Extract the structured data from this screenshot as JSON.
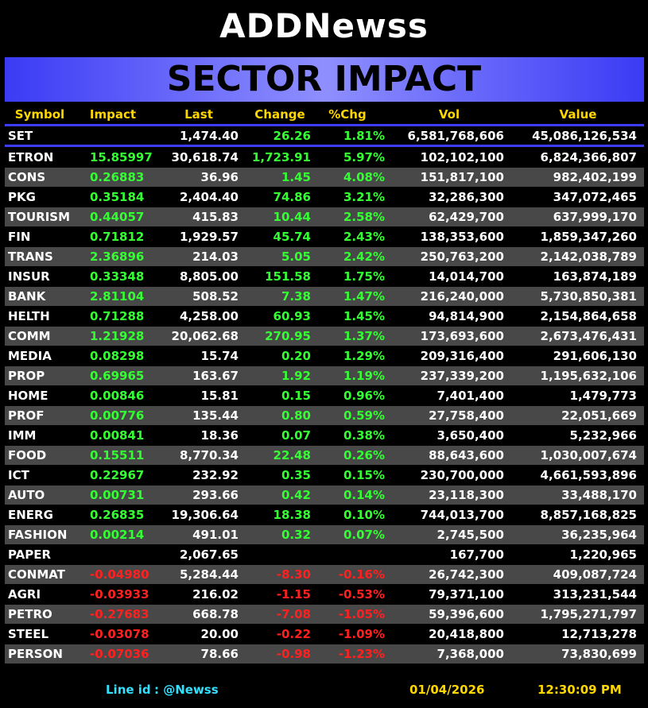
{
  "header": {
    "logo": "ADDNewss",
    "title": "SECTOR IMPACT"
  },
  "table": {
    "columns": [
      "Symbol",
      "Impact",
      "Last",
      "Change",
      "%Chg",
      "Vol",
      "Value"
    ],
    "rows": [
      [
        "SET",
        null,
        "1,474.40",
        "26.26",
        "1.81%",
        "6,581,768,606",
        "45,086,126,534"
      ],
      [
        "ETRON",
        "15.85997",
        "30,618.74",
        "1,723.91",
        "5.97%",
        "102,102,100",
        "6,824,366,807"
      ],
      [
        "CONS",
        "0.26883",
        "36.96",
        "1.45",
        "4.08%",
        "151,817,100",
        "982,402,199"
      ],
      [
        "PKG",
        "0.35184",
        "2,404.40",
        "74.86",
        "3.21%",
        "32,286,300",
        "347,072,465"
      ],
      [
        "TOURISM",
        "0.44057",
        "415.83",
        "10.44",
        "2.58%",
        "62,429,700",
        "637,999,170"
      ],
      [
        "FIN",
        "0.71812",
        "1,929.57",
        "45.74",
        "2.43%",
        "138,353,600",
        "1,859,347,260"
      ],
      [
        "TRANS",
        "2.36896",
        "214.03",
        "5.05",
        "2.42%",
        "250,763,200",
        "2,142,038,789"
      ],
      [
        "INSUR",
        "0.33348",
        "8,805.00",
        "151.58",
        "1.75%",
        "14,014,700",
        "163,874,189"
      ],
      [
        "BANK",
        "2.81104",
        "508.52",
        "7.38",
        "1.47%",
        "216,240,000",
        "5,730,850,381"
      ],
      [
        "HELTH",
        "0.71288",
        "4,258.00",
        "60.93",
        "1.45%",
        "94,814,900",
        "2,154,864,658"
      ],
      [
        "COMM",
        "1.21928",
        "20,062.68",
        "270.95",
        "1.37%",
        "173,693,600",
        "2,673,476,431"
      ],
      [
        "MEDIA",
        "0.08298",
        "15.74",
        "0.20",
        "1.29%",
        "209,316,400",
        "291,606,130"
      ],
      [
        "PROP",
        "0.69965",
        "163.67",
        "1.92",
        "1.19%",
        "237,339,200",
        "1,195,632,106"
      ],
      [
        "HOME",
        "0.00846",
        "15.81",
        "0.15",
        "0.96%",
        "7,401,400",
        "1,479,773"
      ],
      [
        "PROF",
        "0.00776",
        "135.44",
        "0.80",
        "0.59%",
        "27,758,400",
        "22,051,669"
      ],
      [
        "IMM",
        "0.00841",
        "18.36",
        "0.07",
        "0.38%",
        "3,650,400",
        "5,232,966"
      ],
      [
        "FOOD",
        "0.15511",
        "8,770.34",
        "22.48",
        "0.26%",
        "88,643,600",
        "1,030,007,674"
      ],
      [
        "ICT",
        "0.22967",
        "232.92",
        "0.35",
        "0.15%",
        "230,700,000",
        "4,661,593,896"
      ],
      [
        "AUTO",
        "0.00731",
        "293.66",
        "0.42",
        "0.14%",
        "23,118,300",
        "33,488,170"
      ],
      [
        "ENERG",
        "0.26835",
        "19,306.64",
        "18.38",
        "0.10%",
        "744,013,700",
        "8,857,168,825"
      ],
      [
        "FASHION",
        "0.00214",
        "491.01",
        "0.32",
        "0.07%",
        "2,745,500",
        "36,235,964"
      ],
      [
        "PAPER",
        null,
        "2,067.65",
        null,
        null,
        "167,700",
        "1,220,965"
      ],
      [
        "CONMAT",
        "-0.04980",
        "5,284.44",
        "-8.30",
        "-0.16%",
        "26,742,300",
        "409,087,724"
      ],
      [
        "AGRI",
        "-0.03933",
        "216.02",
        "-1.15",
        "-0.53%",
        "79,371,100",
        "313,231,544"
      ],
      [
        "PETRO",
        "-0.27683",
        "668.78",
        "-7.08",
        "-1.05%",
        "59,396,600",
        "1,795,271,797"
      ],
      [
        "STEEL",
        "-0.03078",
        "20.00",
        "-0.22",
        "-1.09%",
        "20,418,800",
        "12,713,278"
      ],
      [
        "PERSON",
        "-0.07036",
        "78.66",
        "-0.98",
        "-1.23%",
        "7,368,000",
        "73,830,699"
      ]
    ]
  },
  "footer": {
    "line_label": "Line id",
    "line_id": ": @Newss",
    "date": "01/04/2026",
    "time": "12:30:09 PM"
  }
}
